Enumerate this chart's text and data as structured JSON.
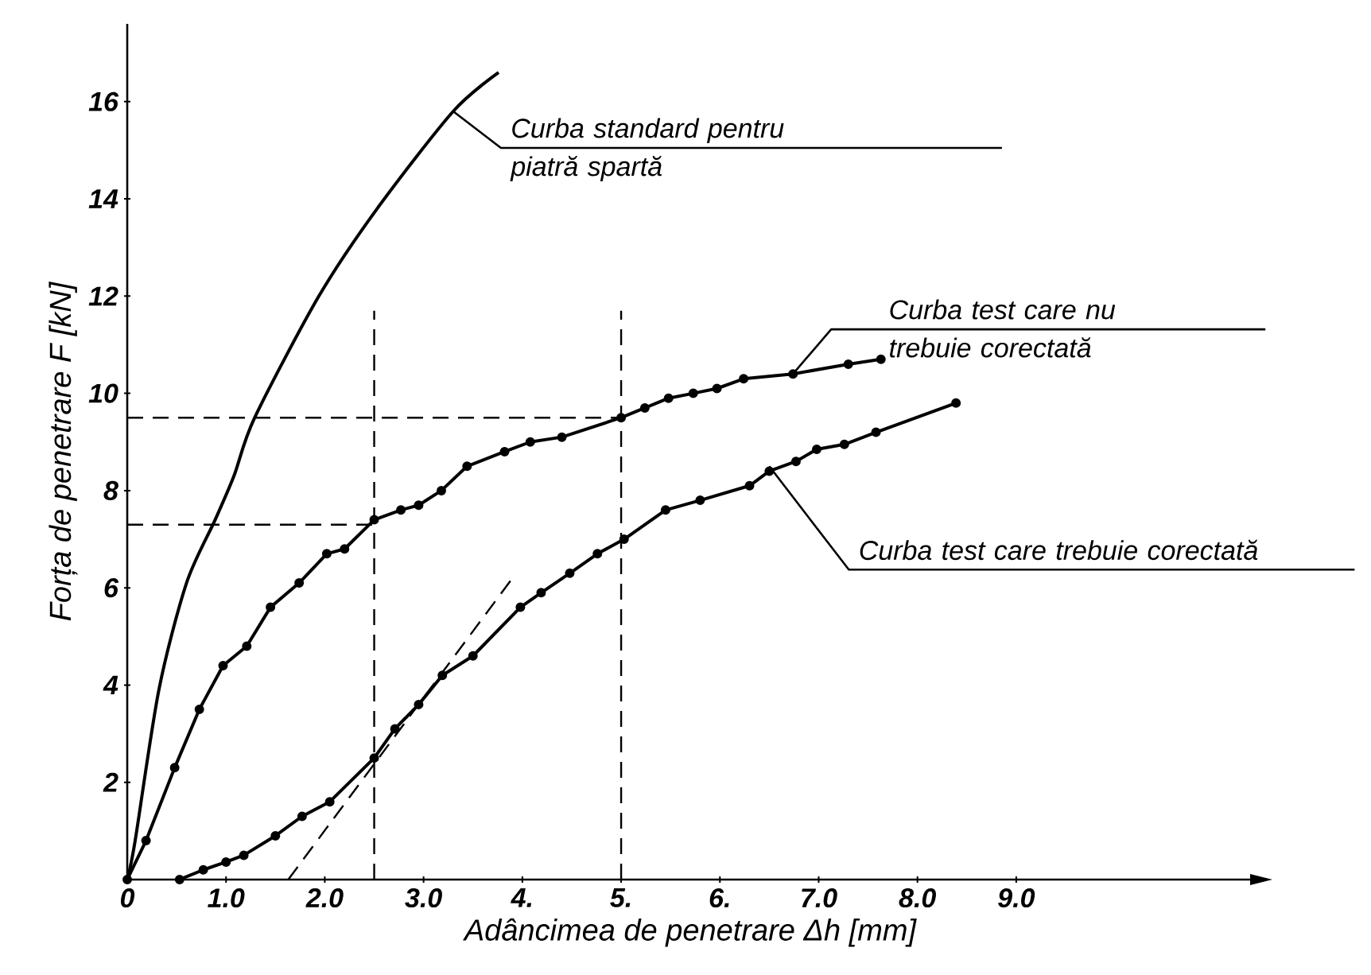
{
  "chart_data": {
    "type": "line",
    "xlabel": "Adâncimea de penetrare Δh [mm]",
    "ylabel": "Forța de penetrare F [kN]",
    "xlim": [
      0,
      11.4
    ],
    "ylim": [
      0,
      17.6
    ],
    "xticks": [
      0,
      {
        "value": 1,
        "label": "1.0"
      },
      {
        "value": 2,
        "label": "2.0"
      },
      {
        "value": 3,
        "label": "3.0"
      },
      {
        "value": 4,
        "label": "4."
      },
      {
        "value": 5,
        "label": "5."
      },
      {
        "value": 6,
        "label": "6."
      },
      {
        "value": 7,
        "label": "7.0"
      },
      {
        "value": 8,
        "label": "8.0"
      },
      {
        "value": 9,
        "label": "9.0"
      }
    ],
    "yticks": [
      2,
      4,
      6,
      8,
      10,
      12,
      14,
      16
    ],
    "series": [
      {
        "color": "#000000",
        "marker": "none",
        "line_style": "solid",
        "x": [
          0,
          0.08,
          0.32,
          0.6,
          0.89,
          1.08,
          1.29,
          1.94,
          2.53,
          3.3,
          3.76
        ],
        "values": [
          0,
          0.8,
          3.9,
          6.1,
          7.4,
          8.3,
          9.5,
          12,
          13.8,
          15.8,
          16.6
        ]
      },
      {
        "color": "#000000",
        "marker": "circle",
        "line_style": "solid",
        "x": [
          0,
          0.19,
          0.48,
          0.73,
          0.97,
          1.21,
          1.45,
          1.74,
          2.02,
          2.2,
          2.5,
          2.77,
          2.95,
          3.18,
          3.44,
          3.82,
          4.08,
          4.4,
          5.0,
          5.24,
          5.48,
          5.73,
          5.97,
          6.24,
          6.74,
          7.3,
          7.63
        ],
        "values": [
          0,
          0.8,
          2.3,
          3.5,
          4.4,
          4.8,
          5.6,
          6.1,
          6.7,
          6.8,
          7.4,
          7.6,
          7.7,
          8.0,
          8.5,
          8.8,
          9.0,
          9.1,
          9.5,
          9.7,
          9.9,
          10.0,
          10.1,
          10.3,
          10.4,
          10.6,
          10.7
        ]
      },
      {
        "color": "#000000",
        "marker": "circle",
        "line_style": "solid",
        "x": [
          0.53,
          0.77,
          1.0,
          1.18,
          1.5,
          1.77,
          2.05,
          2.5,
          2.71,
          2.95,
          3.19,
          3.5,
          3.98,
          4.19,
          4.48,
          4.76,
          5.03,
          5.45,
          5.8,
          6.3,
          6.5,
          6.77,
          6.98,
          7.26,
          7.58,
          8.39
        ],
        "values": [
          0,
          0.2,
          0.36,
          0.5,
          0.9,
          1.3,
          1.6,
          2.5,
          3.1,
          3.6,
          4.2,
          4.6,
          5.6,
          5.9,
          6.3,
          6.7,
          7.0,
          7.6,
          7.8,
          8.1,
          8.4,
          8.6,
          8.85,
          8.95,
          9.2,
          9.8
        ]
      },
      {
        "color": "#000000",
        "marker": "none",
        "line_style": "dashed",
        "x": [
          1.63,
          3.9
        ],
        "values": [
          0,
          6.2
        ]
      },
      {
        "color": "#000000",
        "marker": "none",
        "line_style": "dashed",
        "x": [
          0,
          2.5
        ],
        "values": [
          7.3,
          7.3
        ]
      },
      {
        "color": "#000000",
        "marker": "none",
        "line_style": "dashed",
        "x": [
          2.5,
          2.5
        ],
        "values": [
          0,
          11.7
        ]
      },
      {
        "color": "#000000",
        "marker": "none",
        "line_style": "dashed",
        "x": [
          0,
          5
        ],
        "values": [
          9.5,
          9.5
        ]
      },
      {
        "color": "#000000",
        "marker": "none",
        "line_style": "dashed",
        "x": [
          5,
          5
        ],
        "values": [
          0,
          11.7
        ]
      }
    ],
    "annotations": [
      {
        "text": "Curba standard pentru piatră spartă",
        "x": 3.3,
        "y": 15.8
      },
      {
        "text": "Curba test care nu trebuie corectată",
        "x": 6.74,
        "y": 10.4
      },
      {
        "text": "Curba test care trebuie corectată",
        "x": 6.5,
        "y": 8.5
      }
    ]
  }
}
